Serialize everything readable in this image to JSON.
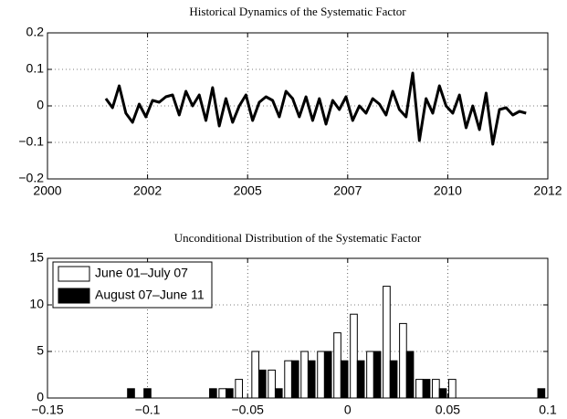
{
  "chart_data": [
    {
      "type": "line",
      "title": "Historical Dynamics of the Systematic Factor",
      "x": [
        2001.4,
        2001.56,
        2001.72,
        2001.88,
        2002.04,
        2002.2,
        2002.36,
        2002.52,
        2002.68,
        2002.84,
        2003.0,
        2003.16,
        2003.32,
        2003.48,
        2003.64,
        2003.8,
        2003.96,
        2004.12,
        2004.28,
        2004.44,
        2004.6,
        2004.76,
        2004.92,
        2005.08,
        2005.24,
        2005.4,
        2005.56,
        2005.72,
        2005.88,
        2006.04,
        2006.2,
        2006.36,
        2006.52,
        2006.68,
        2006.84,
        2007.0,
        2007.16,
        2007.32,
        2007.48,
        2007.64,
        2007.8,
        2007.96,
        2008.12,
        2008.28,
        2008.44,
        2008.6,
        2008.76,
        2008.92,
        2009.08,
        2009.24,
        2009.4,
        2009.56,
        2009.72,
        2009.88,
        2010.04,
        2010.2,
        2010.36,
        2010.52,
        2010.68,
        2010.84,
        2011.0,
        2011.16,
        2011.32,
        2011.48
      ],
      "series": [
        {
          "color": "#000000",
          "values": [
            0.02,
            -0.005,
            0.055,
            -0.02,
            -0.045,
            0.005,
            -0.03,
            0.015,
            0.01,
            0.025,
            0.03,
            -0.025,
            0.04,
            0.0,
            0.03,
            -0.04,
            0.05,
            -0.055,
            0.02,
            -0.045,
            0.0,
            0.03,
            -0.04,
            0.01,
            0.025,
            0.015,
            -0.03,
            0.04,
            0.02,
            -0.03,
            0.025,
            -0.04,
            0.02,
            -0.05,
            0.015,
            -0.01,
            0.025,
            -0.04,
            0.0,
            -0.02,
            0.02,
            0.005,
            -0.025,
            0.04,
            -0.01,
            -0.03,
            0.09,
            -0.095,
            0.02,
            -0.02,
            0.055,
            0.0,
            -0.02,
            0.03,
            -0.06,
            0.0,
            -0.065,
            0.035,
            -0.105,
            -0.01,
            -0.005,
            -0.025,
            -0.015,
            -0.02
          ]
        }
      ],
      "xlim": [
        2000,
        2012
      ],
      "xticks": [
        2000,
        {
          "value": 2002.4,
          "label": "2002"
        },
        {
          "value": 2004.8,
          "label": "2005"
        },
        {
          "value": 2007.2,
          "label": "2007"
        },
        {
          "value": 2009.6,
          "label": "2010"
        },
        2012
      ],
      "ylim": [
        -0.2,
        0.2
      ],
      "yticks": [
        {
          "value": -0.2,
          "label": "−0.2"
        },
        {
          "value": -0.1,
          "label": "−0.1"
        },
        0,
        0.1,
        0.2
      ],
      "grid": true
    },
    {
      "type": "bar",
      "title": "Unconditional Distribution of the Systematic Factor",
      "x": [
        -0.11,
        -0.1018,
        -0.0936,
        -0.0854,
        -0.0772,
        -0.069,
        -0.0608,
        -0.0526,
        -0.0444,
        -0.0362,
        -0.028,
        -0.0198,
        -0.0116,
        -0.0034,
        0.0048,
        0.013,
        0.0212,
        0.0294,
        0.0376,
        0.0458,
        0.054,
        0.0622,
        0.0704,
        0.0786,
        0.0868,
        0.095
      ],
      "series": [
        {
          "name": "June 01–July 07",
          "color": "#ffffff",
          "values": [
            0,
            0,
            0,
            0,
            0,
            0,
            1,
            2,
            5,
            3,
            4,
            5,
            5,
            7,
            9,
            5,
            12,
            8,
            2,
            2,
            2,
            0,
            0,
            0,
            0,
            0
          ]
        },
        {
          "name": "August 07–June 11",
          "color": "#000000",
          "values": [
            1,
            1,
            0,
            0,
            0,
            1,
            1,
            0,
            3,
            1,
            4,
            4,
            5,
            4,
            4,
            5,
            4,
            5,
            2,
            1,
            0,
            0,
            0,
            0,
            0,
            1
          ]
        }
      ],
      "xlim": [
        -0.15,
        0.1
      ],
      "xticks": [
        {
          "value": -0.15,
          "label": "−0.15"
        },
        {
          "value": -0.1,
          "label": "−0.1"
        },
        {
          "value": -0.05,
          "label": "−0.05"
        },
        0,
        0.05,
        0.1
      ],
      "ylim": [
        0,
        15
      ],
      "yticks": [
        0,
        5,
        10,
        15
      ],
      "grid": true,
      "legend": "upper left"
    }
  ]
}
